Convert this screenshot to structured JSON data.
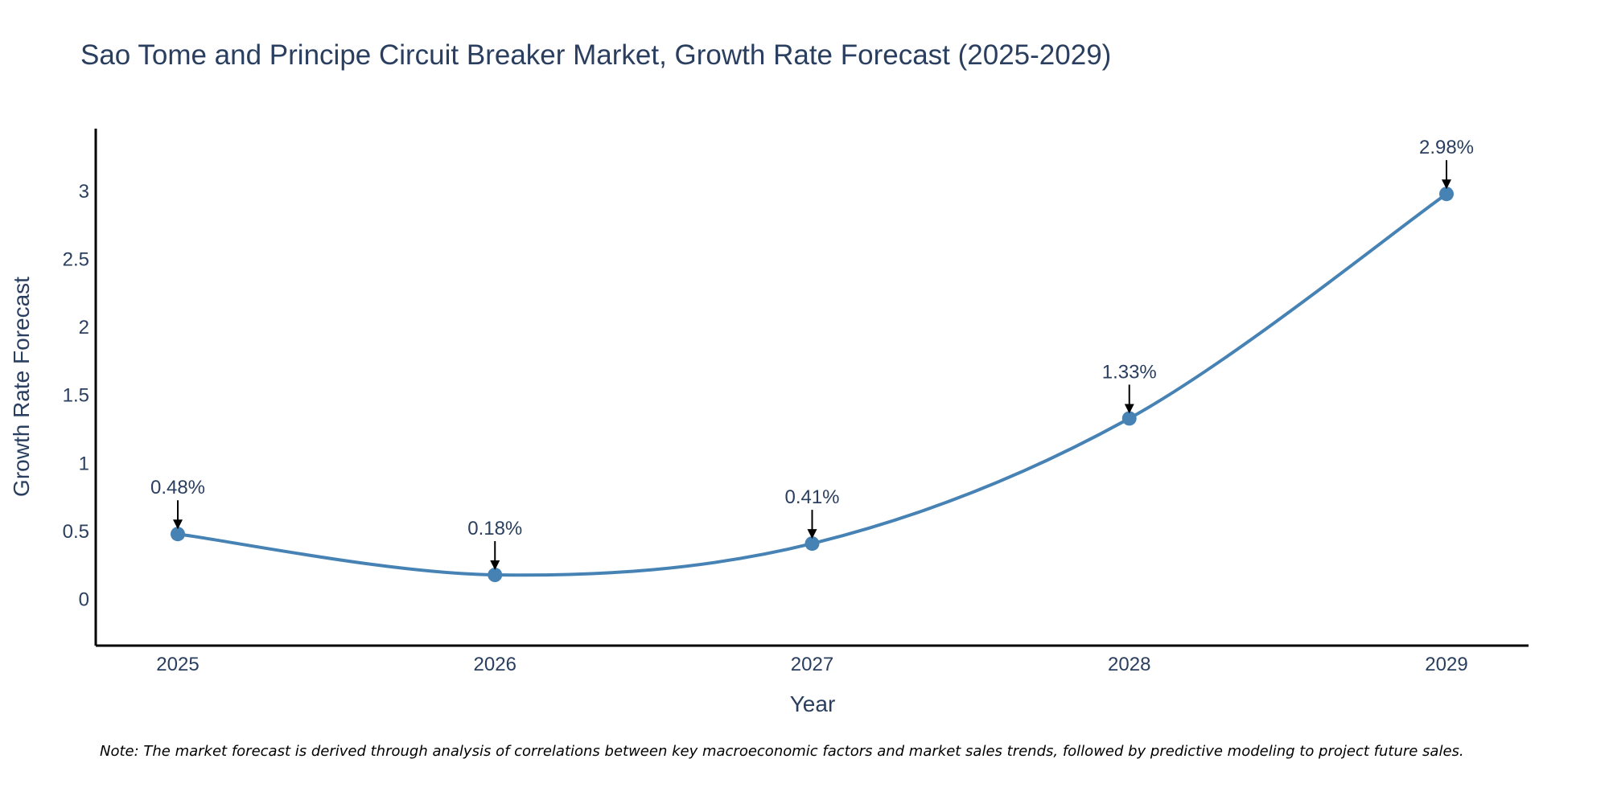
{
  "chart_data": {
    "type": "line",
    "title": "Sao Tome and Principe Circuit Breaker Market, Growth Rate Forecast (2025-2029)",
    "xlabel": "Year",
    "ylabel": "Growth Rate Forecast",
    "categories": [
      "2025",
      "2026",
      "2027",
      "2028",
      "2029"
    ],
    "series": [
      {
        "name": "Growth Rate Forecast",
        "values": [
          0.48,
          0.18,
          0.41,
          1.33,
          2.98
        ],
        "labels": [
          "0.48%",
          "0.18%",
          "0.41%",
          "1.33%",
          "2.98%"
        ]
      }
    ],
    "ylim": [
      -0.34,
      3.46
    ],
    "yticks": [
      0,
      0.5,
      1,
      1.5,
      2,
      2.5,
      3
    ],
    "ytick_labels": [
      "0",
      "0.5",
      "1",
      "1.5",
      "2",
      "2.5",
      "3"
    ],
    "grid": false,
    "line_color": "#4682B4",
    "marker_color": "#4682B4",
    "annotation_arrow_color": "#000000",
    "note": "Note: The market forecast is derived through analysis of correlations between key macroeconomic factors and market sales trends, followed by predictive modeling to project future sales."
  }
}
